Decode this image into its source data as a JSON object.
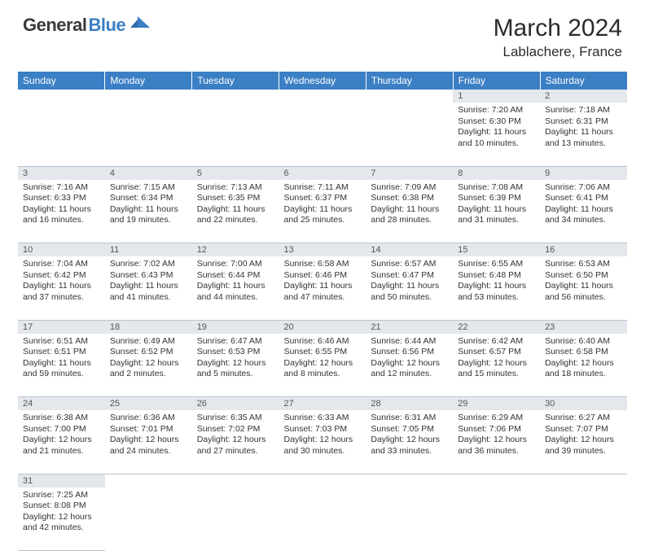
{
  "logo": {
    "general": "General",
    "blue": "Blue"
  },
  "title": "March 2024",
  "location": "Lablachere, France",
  "colors": {
    "header_bg": "#3b7fc4",
    "header_text": "#ffffff",
    "daynum_bg": "#e4e8ec",
    "border": "#b8c4d0",
    "page_bg": "#ffffff"
  },
  "weekdays": [
    "Sunday",
    "Monday",
    "Tuesday",
    "Wednesday",
    "Thursday",
    "Friday",
    "Saturday"
  ],
  "weeks": [
    [
      null,
      null,
      null,
      null,
      null,
      {
        "n": "1",
        "sr": "Sunrise: 7:20 AM",
        "ss": "Sunset: 6:30 PM",
        "dl": "Daylight: 11 hours and 10 minutes."
      },
      {
        "n": "2",
        "sr": "Sunrise: 7:18 AM",
        "ss": "Sunset: 6:31 PM",
        "dl": "Daylight: 11 hours and 13 minutes."
      }
    ],
    [
      {
        "n": "3",
        "sr": "Sunrise: 7:16 AM",
        "ss": "Sunset: 6:33 PM",
        "dl": "Daylight: 11 hours and 16 minutes."
      },
      {
        "n": "4",
        "sr": "Sunrise: 7:15 AM",
        "ss": "Sunset: 6:34 PM",
        "dl": "Daylight: 11 hours and 19 minutes."
      },
      {
        "n": "5",
        "sr": "Sunrise: 7:13 AM",
        "ss": "Sunset: 6:35 PM",
        "dl": "Daylight: 11 hours and 22 minutes."
      },
      {
        "n": "6",
        "sr": "Sunrise: 7:11 AM",
        "ss": "Sunset: 6:37 PM",
        "dl": "Daylight: 11 hours and 25 minutes."
      },
      {
        "n": "7",
        "sr": "Sunrise: 7:09 AM",
        "ss": "Sunset: 6:38 PM",
        "dl": "Daylight: 11 hours and 28 minutes."
      },
      {
        "n": "8",
        "sr": "Sunrise: 7:08 AM",
        "ss": "Sunset: 6:39 PM",
        "dl": "Daylight: 11 hours and 31 minutes."
      },
      {
        "n": "9",
        "sr": "Sunrise: 7:06 AM",
        "ss": "Sunset: 6:41 PM",
        "dl": "Daylight: 11 hours and 34 minutes."
      }
    ],
    [
      {
        "n": "10",
        "sr": "Sunrise: 7:04 AM",
        "ss": "Sunset: 6:42 PM",
        "dl": "Daylight: 11 hours and 37 minutes."
      },
      {
        "n": "11",
        "sr": "Sunrise: 7:02 AM",
        "ss": "Sunset: 6:43 PM",
        "dl": "Daylight: 11 hours and 41 minutes."
      },
      {
        "n": "12",
        "sr": "Sunrise: 7:00 AM",
        "ss": "Sunset: 6:44 PM",
        "dl": "Daylight: 11 hours and 44 minutes."
      },
      {
        "n": "13",
        "sr": "Sunrise: 6:58 AM",
        "ss": "Sunset: 6:46 PM",
        "dl": "Daylight: 11 hours and 47 minutes."
      },
      {
        "n": "14",
        "sr": "Sunrise: 6:57 AM",
        "ss": "Sunset: 6:47 PM",
        "dl": "Daylight: 11 hours and 50 minutes."
      },
      {
        "n": "15",
        "sr": "Sunrise: 6:55 AM",
        "ss": "Sunset: 6:48 PM",
        "dl": "Daylight: 11 hours and 53 minutes."
      },
      {
        "n": "16",
        "sr": "Sunrise: 6:53 AM",
        "ss": "Sunset: 6:50 PM",
        "dl": "Daylight: 11 hours and 56 minutes."
      }
    ],
    [
      {
        "n": "17",
        "sr": "Sunrise: 6:51 AM",
        "ss": "Sunset: 6:51 PM",
        "dl": "Daylight: 11 hours and 59 minutes."
      },
      {
        "n": "18",
        "sr": "Sunrise: 6:49 AM",
        "ss": "Sunset: 6:52 PM",
        "dl": "Daylight: 12 hours and 2 minutes."
      },
      {
        "n": "19",
        "sr": "Sunrise: 6:47 AM",
        "ss": "Sunset: 6:53 PM",
        "dl": "Daylight: 12 hours and 5 minutes."
      },
      {
        "n": "20",
        "sr": "Sunrise: 6:46 AM",
        "ss": "Sunset: 6:55 PM",
        "dl": "Daylight: 12 hours and 8 minutes."
      },
      {
        "n": "21",
        "sr": "Sunrise: 6:44 AM",
        "ss": "Sunset: 6:56 PM",
        "dl": "Daylight: 12 hours and 12 minutes."
      },
      {
        "n": "22",
        "sr": "Sunrise: 6:42 AM",
        "ss": "Sunset: 6:57 PM",
        "dl": "Daylight: 12 hours and 15 minutes."
      },
      {
        "n": "23",
        "sr": "Sunrise: 6:40 AM",
        "ss": "Sunset: 6:58 PM",
        "dl": "Daylight: 12 hours and 18 minutes."
      }
    ],
    [
      {
        "n": "24",
        "sr": "Sunrise: 6:38 AM",
        "ss": "Sunset: 7:00 PM",
        "dl": "Daylight: 12 hours and 21 minutes."
      },
      {
        "n": "25",
        "sr": "Sunrise: 6:36 AM",
        "ss": "Sunset: 7:01 PM",
        "dl": "Daylight: 12 hours and 24 minutes."
      },
      {
        "n": "26",
        "sr": "Sunrise: 6:35 AM",
        "ss": "Sunset: 7:02 PM",
        "dl": "Daylight: 12 hours and 27 minutes."
      },
      {
        "n": "27",
        "sr": "Sunrise: 6:33 AM",
        "ss": "Sunset: 7:03 PM",
        "dl": "Daylight: 12 hours and 30 minutes."
      },
      {
        "n": "28",
        "sr": "Sunrise: 6:31 AM",
        "ss": "Sunset: 7:05 PM",
        "dl": "Daylight: 12 hours and 33 minutes."
      },
      {
        "n": "29",
        "sr": "Sunrise: 6:29 AM",
        "ss": "Sunset: 7:06 PM",
        "dl": "Daylight: 12 hours and 36 minutes."
      },
      {
        "n": "30",
        "sr": "Sunrise: 6:27 AM",
        "ss": "Sunset: 7:07 PM",
        "dl": "Daylight: 12 hours and 39 minutes."
      }
    ],
    [
      {
        "n": "31",
        "sr": "Sunrise: 7:25 AM",
        "ss": "Sunset: 8:08 PM",
        "dl": "Daylight: 12 hours and 42 minutes."
      },
      null,
      null,
      null,
      null,
      null,
      null
    ]
  ]
}
